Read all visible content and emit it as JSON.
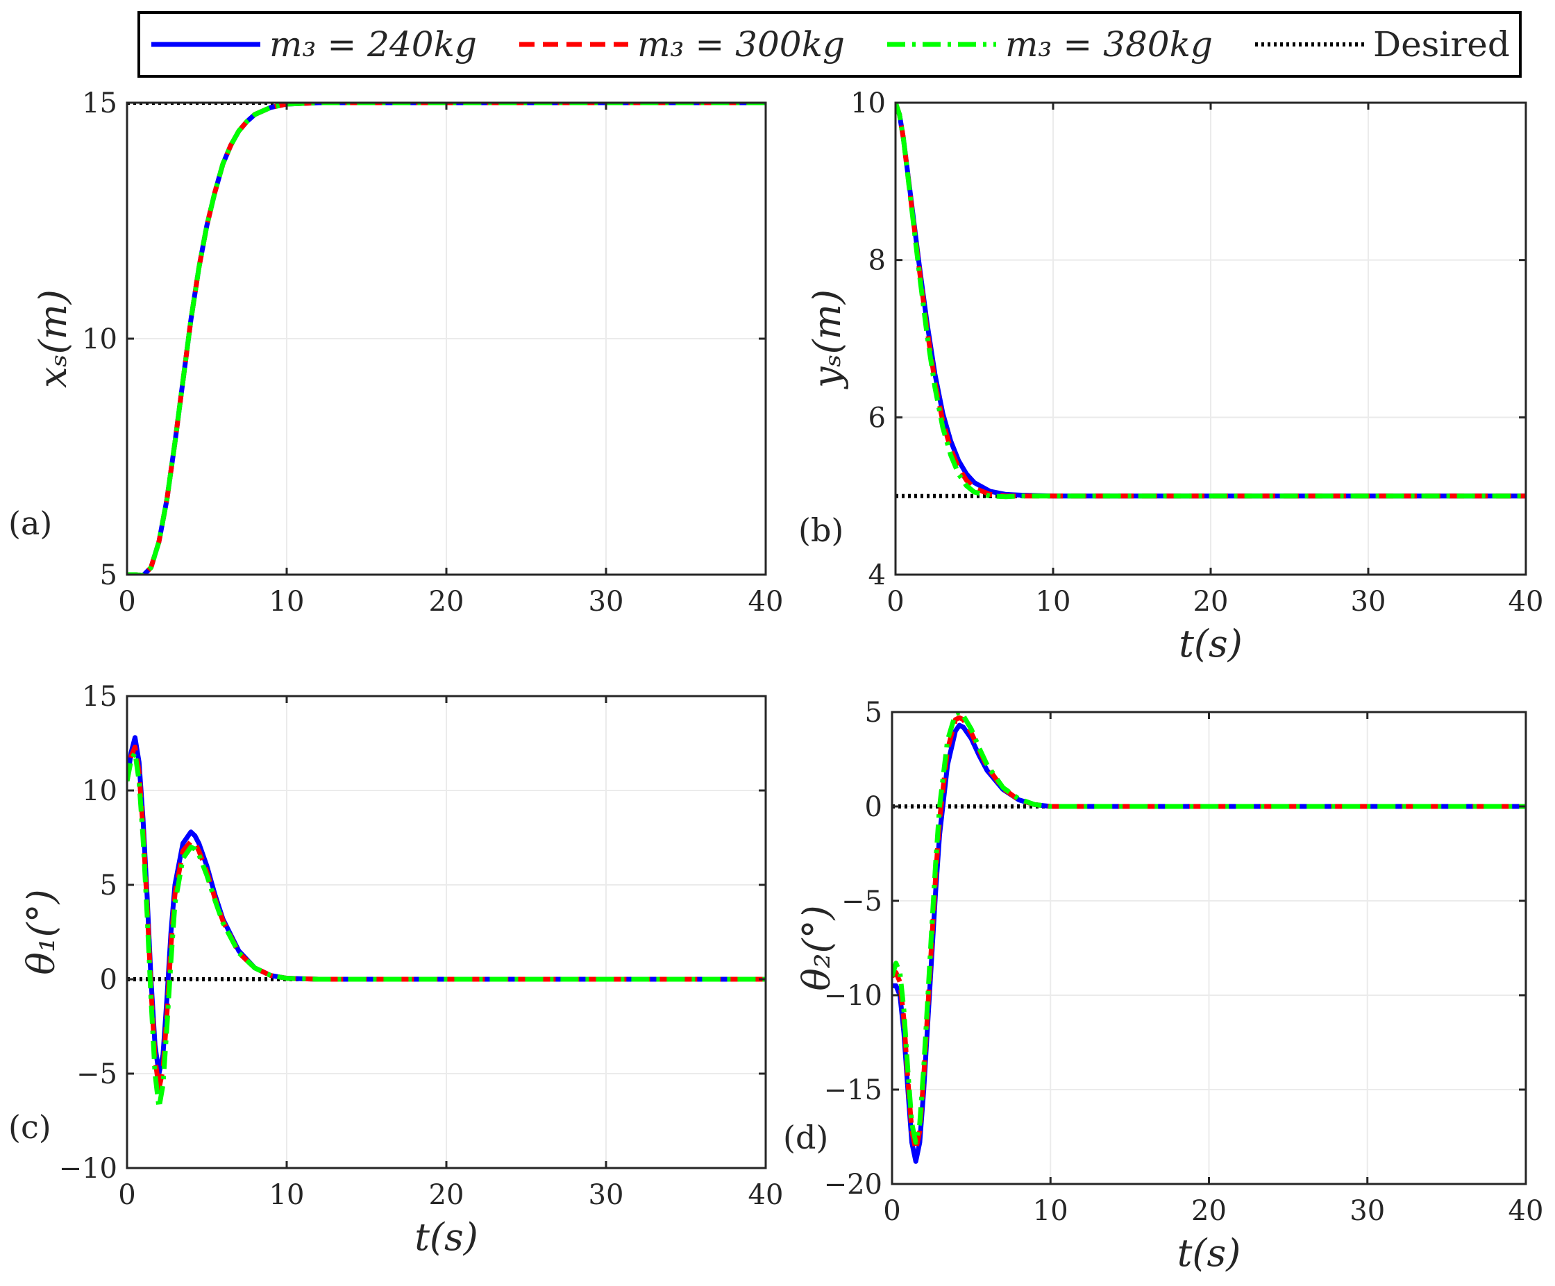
{
  "legend": {
    "entries": [
      {
        "label": "m₃ = 240kg",
        "color": "#0000ff",
        "style": "solid"
      },
      {
        "label": "m₃ = 300kg",
        "color": "#ff0000",
        "style": "dashed"
      },
      {
        "label": "m₃ = 380kg",
        "color": "#00ff00",
        "style": "dashdot"
      },
      {
        "label": "Desired",
        "color": "#000000",
        "style": "dotted"
      }
    ]
  },
  "colors": {
    "m240": "#0000ff",
    "m300": "#ff0000",
    "m380": "#00ff00",
    "desired": "#000000",
    "grid": "#ebebeb",
    "axis": "#262626"
  },
  "chart_data": [
    {
      "type": "line",
      "panel_label": "(a)",
      "ylabel": "xₛ(m)",
      "xlabel": "",
      "xlim": [
        0,
        40
      ],
      "ylim": [
        5,
        15
      ],
      "xticks": [
        0,
        10,
        20,
        30,
        40
      ],
      "yticks": [
        5,
        10,
        15
      ],
      "grid": true,
      "x": [
        0,
        0.5,
        1,
        1.5,
        2,
        2.5,
        3,
        3.5,
        4,
        4.5,
        5,
        5.5,
        6,
        6.5,
        7,
        7.5,
        8,
        9,
        10,
        12,
        15,
        20,
        30,
        40
      ],
      "series": [
        {
          "name": "m₃ = 240kg",
          "style": "solid",
          "values": [
            5,
            5,
            4.98,
            5.15,
            5.7,
            6.6,
            7.8,
            9.1,
            10.4,
            11.5,
            12.4,
            13.1,
            13.7,
            14.1,
            14.4,
            14.6,
            14.75,
            14.9,
            14.97,
            15,
            15,
            15,
            15,
            15
          ]
        },
        {
          "name": "m₃ = 300kg",
          "style": "dashed",
          "values": [
            5,
            5,
            4.98,
            5.15,
            5.7,
            6.6,
            7.8,
            9.1,
            10.4,
            11.5,
            12.4,
            13.1,
            13.7,
            14.1,
            14.4,
            14.6,
            14.75,
            14.9,
            14.97,
            15,
            15,
            15,
            15,
            15
          ]
        },
        {
          "name": "m₃ = 380kg",
          "style": "dashdot",
          "values": [
            5,
            5,
            4.98,
            5.15,
            5.7,
            6.6,
            7.8,
            9.1,
            10.4,
            11.5,
            12.4,
            13.1,
            13.7,
            14.1,
            14.4,
            14.6,
            14.75,
            14.9,
            14.97,
            15,
            15,
            15,
            15,
            15
          ]
        },
        {
          "name": "Desired",
          "style": "dotted",
          "x": [
            0,
            40
          ],
          "values": [
            15,
            15
          ]
        }
      ]
    },
    {
      "type": "line",
      "panel_label": "(b)",
      "ylabel": "yₛ(m)",
      "xlabel": "t(s)",
      "xlim": [
        0,
        40
      ],
      "ylim": [
        4,
        10
      ],
      "xticks": [
        0,
        10,
        20,
        30,
        40
      ],
      "yticks": [
        4,
        6,
        8,
        10
      ],
      "grid": true,
      "x": [
        0,
        0.25,
        0.5,
        1,
        1.5,
        2,
        2.5,
        3,
        3.5,
        4,
        4.5,
        5,
        6,
        7,
        8,
        10,
        15,
        20,
        30,
        40
      ],
      "series": [
        {
          "name": "m₃ = 240kg",
          "style": "solid",
          "values": [
            10,
            9.85,
            9.55,
            8.75,
            7.95,
            7.2,
            6.55,
            6.05,
            5.7,
            5.45,
            5.28,
            5.17,
            5.06,
            5.02,
            5.01,
            5,
            5,
            5,
            5,
            5
          ]
        },
        {
          "name": "m₃ = 300kg",
          "style": "dashed",
          "values": [
            10,
            9.85,
            9.55,
            8.72,
            7.9,
            7.12,
            6.45,
            5.95,
            5.6,
            5.36,
            5.2,
            5.1,
            5.02,
            5,
            5,
            5,
            5,
            5,
            5,
            5
          ]
        },
        {
          "name": "m₃ = 380kg",
          "style": "dashdot",
          "values": [
            10,
            9.85,
            9.55,
            8.7,
            7.85,
            7.05,
            6.38,
            5.87,
            5.52,
            5.28,
            5.13,
            5.05,
            5,
            4.99,
            5,
            5,
            5,
            5,
            5,
            5
          ]
        },
        {
          "name": "Desired",
          "style": "dotted",
          "x": [
            0,
            40
          ],
          "values": [
            5,
            5
          ]
        }
      ]
    },
    {
      "type": "line",
      "panel_label": "(c)",
      "ylabel": "θ₁(°)",
      "xlabel": "t(s)",
      "xlim": [
        0,
        40
      ],
      "ylim": [
        -10,
        15
      ],
      "xticks": [
        0,
        10,
        20,
        30,
        40
      ],
      "yticks": [
        -10,
        -5,
        0,
        5,
        10,
        15
      ],
      "grid": true,
      "x": [
        0,
        0.25,
        0.5,
        0.75,
        1,
        1.25,
        1.5,
        1.75,
        2,
        2.25,
        2.5,
        2.75,
        3,
        3.5,
        4,
        4.25,
        4.5,
        5,
        5.5,
        6,
        7,
        8,
        9,
        10,
        12,
        15,
        20,
        30,
        40
      ],
      "series": [
        {
          "name": "m₃ = 240kg",
          "style": "solid",
          "values": [
            10.5,
            12,
            12.8,
            11.5,
            8.5,
            4.5,
            0,
            -3.5,
            -5,
            -4,
            -1,
            2.5,
            5,
            7.2,
            7.8,
            7.6,
            7.2,
            6,
            4.5,
            3.2,
            1.5,
            0.6,
            0.2,
            0.05,
            0,
            0,
            0,
            0,
            0
          ]
        },
        {
          "name": "m₃ = 300kg",
          "style": "dashed",
          "values": [
            10.5,
            11.8,
            12.3,
            11,
            8,
            4,
            -0.5,
            -4.2,
            -5.8,
            -4.8,
            -1.8,
            1.8,
            4.5,
            6.8,
            7.3,
            7.2,
            6.8,
            5.7,
            4.3,
            3.1,
            1.4,
            0.6,
            0.2,
            0.05,
            0,
            0,
            0,
            0,
            0
          ]
        },
        {
          "name": "m₃ = 380kg",
          "style": "dashdot",
          "values": [
            10.5,
            11.6,
            12,
            10.5,
            7.5,
            3.5,
            -1,
            -5,
            -6.8,
            -5.6,
            -2.5,
            1,
            4,
            6.4,
            7,
            6.9,
            6.6,
            5.5,
            4.2,
            3,
            1.4,
            0.6,
            0.2,
            0.05,
            0,
            0,
            0,
            0,
            0
          ]
        },
        {
          "name": "Desired",
          "style": "dotted",
          "x": [
            0,
            40
          ],
          "values": [
            0,
            0
          ]
        }
      ]
    },
    {
      "type": "line",
      "panel_label": "(d)",
      "ylabel": "θ₂(°)",
      "xlabel": "t(s)",
      "xlim": [
        0,
        40
      ],
      "ylim": [
        -20,
        5
      ],
      "xticks": [
        0,
        10,
        20,
        30,
        40
      ],
      "yticks": [
        -20,
        -15,
        -10,
        -5,
        0,
        5
      ],
      "grid": true,
      "x": [
        0,
        0.25,
        0.5,
        0.75,
        1,
        1.25,
        1.5,
        1.75,
        2,
        2.25,
        2.5,
        2.75,
        3,
        3.5,
        4,
        4.25,
        4.5,
        5,
        5.5,
        6,
        7,
        8,
        9,
        10,
        12,
        15,
        20,
        30,
        40
      ],
      "series": [
        {
          "name": "m₃ = 240kg",
          "style": "solid",
          "values": [
            -9.5,
            -9.5,
            -10,
            -12,
            -15,
            -17.8,
            -18.8,
            -17.8,
            -15,
            -11.5,
            -8,
            -4.5,
            -1.5,
            2.2,
            4,
            4.3,
            4.2,
            3.6,
            2.7,
            1.9,
            0.9,
            0.35,
            0.1,
            0,
            0,
            0,
            0,
            0,
            0
          ]
        },
        {
          "name": "m₃ = 300kg",
          "style": "dashed",
          "values": [
            -9,
            -8.8,
            -9.3,
            -11.3,
            -14.5,
            -17.2,
            -18.2,
            -17.2,
            -14.3,
            -10.8,
            -7.2,
            -3.7,
            -0.7,
            3,
            4.6,
            4.7,
            4.6,
            3.9,
            3,
            2.1,
            0.95,
            0.35,
            0.1,
            0,
            0,
            0,
            0,
            0,
            0
          ]
        },
        {
          "name": "m₃ = 380kg",
          "style": "dashdot",
          "values": [
            -9,
            -8.3,
            -8.8,
            -10.8,
            -14,
            -16.8,
            -17.8,
            -16.8,
            -13.8,
            -10.2,
            -6.5,
            -3,
            0,
            3.5,
            4.9,
            5,
            4.8,
            4.1,
            3.1,
            2.2,
            1,
            0.4,
            0.1,
            0,
            0,
            0,
            0,
            0,
            0
          ]
        },
        {
          "name": "Desired",
          "style": "dotted",
          "x": [
            0,
            40
          ],
          "values": [
            0,
            0
          ]
        }
      ]
    }
  ]
}
